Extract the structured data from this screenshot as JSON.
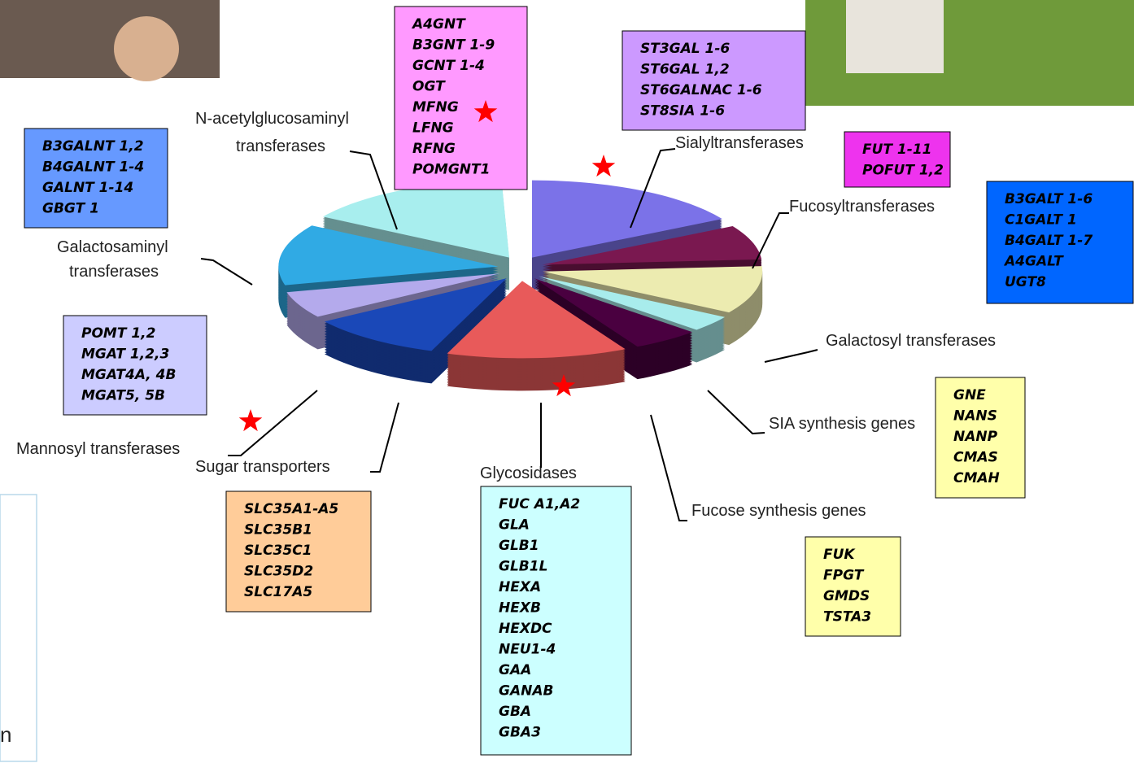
{
  "slices": [
    {
      "label": [
        "Sialyltransferases"
      ]
    },
    {
      "label": [
        "Fucosyltransferases"
      ]
    },
    {
      "label": [
        "Galactosyl transferases"
      ]
    },
    {
      "label": [
        "SIA synthesis genes"
      ]
    },
    {
      "label": [
        "Fucose synthesis genes"
      ]
    },
    {
      "label": [
        "Glycosidases"
      ]
    },
    {
      "label": [
        "Sugar transporters"
      ]
    },
    {
      "label": [
        "Mannosyl transferases"
      ]
    },
    {
      "label": [
        "Galactosaminyl",
        "transferases"
      ]
    },
    {
      "label": [
        "N-acetylglucosaminyl",
        "transferases"
      ]
    }
  ],
  "boxes": [
    {
      "lines": [
        "A4GNT",
        "B3GNT 1-9",
        "GCNT 1-4",
        "OGT",
        "MFNG",
        "LFNG",
        "RFNG",
        "POMGNT1"
      ]
    },
    {
      "lines": [
        "ST3GAL 1-6",
        "ST6GAL 1,2",
        "ST6GALNAC  1-6",
        "ST8SIA  1-6"
      ]
    },
    {
      "lines": [
        "FUT 1-11",
        "POFUT 1,2"
      ]
    },
    {
      "lines": [
        "B3GALNT 1,2",
        "B4GALNT 1-4",
        "GALNT 1-14",
        "GBGT 1"
      ]
    },
    {
      "lines": [
        "B3GALT  1-6",
        "C1GALT 1",
        "B4GALT 1-7",
        "A4GALT",
        "UGT8"
      ]
    },
    {
      "lines": [
        "POMT 1,2",
        "MGAT 1,2,3",
        "MGAT4A, 4B",
        "MGAT5, 5B"
      ]
    },
    {
      "lines": [
        "GNE",
        "NANS",
        "NANP",
        "CMAS",
        "CMAH"
      ]
    },
    {
      "lines": [
        "SLC35A1-A5",
        "SLC35B1",
        "SLC35C1",
        "SLC35D2",
        "SLC17A5"
      ]
    },
    {
      "lines": [
        "FUC A1,A2",
        "GLA",
        "GLB1",
        "GLB1L",
        "HEXA",
        "HEXB",
        "HEXDC",
        "NEU1-4",
        "GAA",
        "GANAB",
        "GBA",
        "GBA3"
      ]
    },
    {
      "lines": [
        "FUK",
        "FPGT",
        "GMDS",
        "TSTA3"
      ]
    }
  ],
  "fragment": "n"
}
